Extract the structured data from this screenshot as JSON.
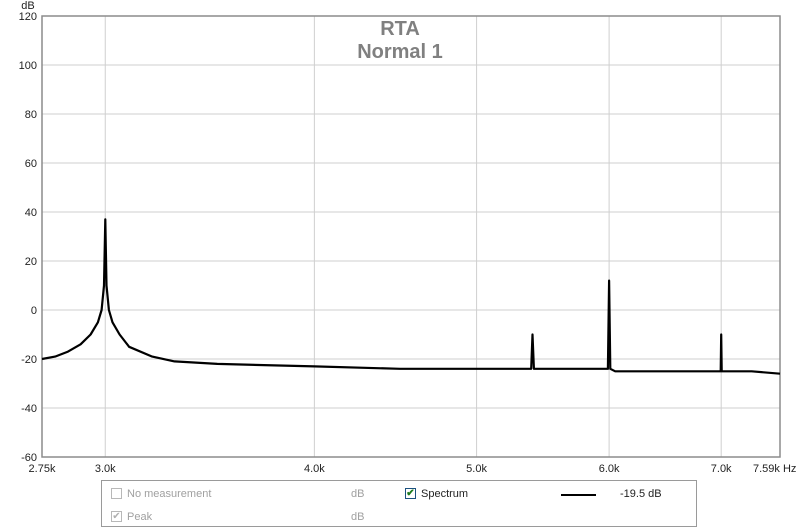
{
  "chart_data": {
    "type": "line",
    "title": "RTA",
    "subtitle": "Normal 1",
    "ylabel": "dB",
    "xunit": "Hz",
    "ylim": [
      -60,
      120
    ],
    "xlim": [
      2750,
      7590
    ],
    "x_scale": "log",
    "grid": true,
    "yticks": [
      120,
      100,
      80,
      60,
      40,
      20,
      0,
      -20,
      -40,
      -60
    ],
    "xticks": [
      {
        "value": 2750,
        "label": "2.75k"
      },
      {
        "value": 3000,
        "label": "3.0k"
      },
      {
        "value": 4000,
        "label": "4.0k"
      },
      {
        "value": 5000,
        "label": "5.0k"
      },
      {
        "value": 6000,
        "label": "6.0k"
      },
      {
        "value": 7000,
        "label": "7.0k"
      },
      {
        "value": 7590,
        "label": "7.59k Hz"
      }
    ],
    "series": [
      {
        "name": "Spectrum",
        "color": "#000000",
        "x": [
          2750,
          2800,
          2850,
          2900,
          2940,
          2970,
          2985,
          2995,
          3000,
          3005,
          3015,
          3030,
          3060,
          3100,
          3200,
          3300,
          3500,
          4000,
          4500,
          5000,
          5300,
          5390,
          5400,
          5410,
          5500,
          5950,
          5990,
          6000,
          6010,
          6050,
          6500,
          6950,
          6995,
          7000,
          7005,
          7300,
          7590
        ],
        "values": [
          -20,
          -19,
          -17,
          -14,
          -10,
          -5,
          0,
          10,
          37,
          10,
          0,
          -5,
          -10,
          -15,
          -19,
          -21,
          -22,
          -23,
          -24,
          -24,
          -24,
          -24,
          -10,
          -24,
          -24,
          -24,
          -24,
          12,
          -24,
          -25,
          -25,
          -25,
          -25,
          -10,
          -25,
          -25,
          -26
        ]
      }
    ]
  },
  "legend": {
    "row1": {
      "label": "No measurement",
      "unit": "dB",
      "checked": false
    },
    "row2": {
      "label": "Peak",
      "unit": "dB",
      "checked": true
    },
    "spectrum": {
      "label": "Spectrum",
      "checked": true,
      "value": "-19.5 dB",
      "color": "#000000"
    }
  }
}
